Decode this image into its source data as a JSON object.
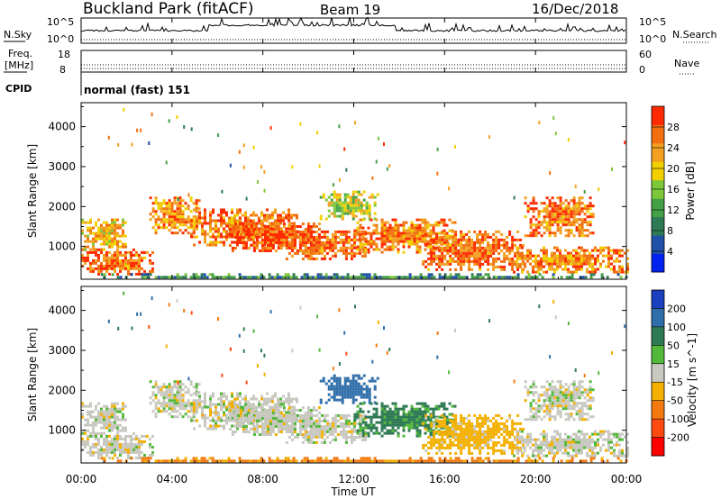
{
  "header": {
    "site": "Buckland Park (fitACF)",
    "beam": "Beam 19",
    "date": "16/Dec/2018"
  },
  "noise_panel": {
    "left_label": "N.Sky",
    "right_label": "N.Search",
    "left_ticks": [
      "10^5",
      "10^0"
    ],
    "right_ticks": [
      "10^5",
      "10^0"
    ]
  },
  "freq_panel": {
    "left_label": "Freq.",
    "left_unit": "[MHz]",
    "right_label": "Nave",
    "left_ticks": [
      "18",
      "8"
    ],
    "right_ticks": [
      "60",
      "0"
    ]
  },
  "cpid": {
    "label": "CPID",
    "value": "normal (fast) 151"
  },
  "time_axis": {
    "title": "Time UT",
    "ticks": [
      "00:00",
      "04:00",
      "08:00",
      "12:00",
      "16:00",
      "20:00",
      "00:00"
    ]
  },
  "chart_data": [
    {
      "type": "heatmap",
      "title": "",
      "quantity": "Power",
      "ylabel": "Slant Range [km]",
      "xlabel": "",
      "x_range_hours": [
        0,
        24
      ],
      "ylim": [
        180,
        4600
      ],
      "yticks": [
        1000,
        2000,
        3000,
        4000
      ],
      "colorbar": {
        "label": "Power [dB]",
        "ticks": [
          4,
          8,
          12,
          16,
          20,
          24,
          28
        ],
        "range": [
          0,
          32
        ],
        "colors": [
          "#0022ee",
          "#2050a8",
          "#2e7a55",
          "#44a044",
          "#7cc83a",
          "#f2d000",
          "#f3a020",
          "#f27010",
          "#ff2a00"
        ]
      },
      "echo_regions": [
        {
          "t": [
            0.0,
            3.2
          ],
          "r": [
            300,
            950
          ],
          "level": 27
        },
        {
          "t": [
            0.0,
            2.0
          ],
          "r": [
            950,
            1700
          ],
          "level": 22
        },
        {
          "t": [
            3.0,
            5.2
          ],
          "r": [
            1350,
            2250
          ],
          "level": 24
        },
        {
          "t": [
            4.8,
            9.5
          ],
          "r": [
            1050,
            1950
          ],
          "level": 26
        },
        {
          "t": [
            6.5,
            10.5
          ],
          "r": [
            900,
            1600
          ],
          "level": 28
        },
        {
          "t": [
            9.0,
            12.5
          ],
          "r": [
            700,
            1400
          ],
          "level": 27
        },
        {
          "t": [
            10.5,
            13.0
          ],
          "r": [
            1700,
            2400
          ],
          "level": 18
        },
        {
          "t": [
            12.0,
            16.5
          ],
          "r": [
            850,
            1700
          ],
          "level": 25
        },
        {
          "t": [
            15.0,
            19.5
          ],
          "r": [
            400,
            1400
          ],
          "level": 27
        },
        {
          "t": [
            19.5,
            22.5
          ],
          "r": [
            1300,
            2250
          ],
          "level": 26
        },
        {
          "t": [
            19.0,
            24.0
          ],
          "r": [
            350,
            1000
          ],
          "level": 25
        },
        {
          "t": [
            0.5,
            24.0
          ],
          "r": [
            200,
            330
          ],
          "level": 10
        }
      ]
    },
    {
      "type": "heatmap",
      "title": "",
      "quantity": "Velocity",
      "ylabel": "Slant Range [km]",
      "xlabel": "Time UT",
      "x_range_hours": [
        0,
        24
      ],
      "ylim": [
        180,
        4600
      ],
      "yticks": [
        1000,
        2000,
        3000,
        4000
      ],
      "colorbar": {
        "label": "Velocity [m s^-1]",
        "ticks": [
          200,
          100,
          50,
          15,
          -15,
          -50,
          -100,
          -200
        ],
        "colors": [
          "#1a3fbf",
          "#2f6eaa",
          "#2e7a55",
          "#52b83a",
          "#c8c8c0",
          "#f4b000",
          "#f47a10",
          "#ff4a10",
          "#ff0000"
        ]
      },
      "echo_regions": [
        {
          "t": [
            0.0,
            3.2
          ],
          "r": [
            300,
            950
          ],
          "level": 0
        },
        {
          "t": [
            0.0,
            2.0
          ],
          "r": [
            950,
            1700
          ],
          "level": 0
        },
        {
          "t": [
            3.0,
            5.2
          ],
          "r": [
            1350,
            2250
          ],
          "level": 0
        },
        {
          "t": [
            4.8,
            9.5
          ],
          "r": [
            1050,
            1950
          ],
          "level": 0
        },
        {
          "t": [
            6.5,
            10.5
          ],
          "r": [
            900,
            1600
          ],
          "level": 0
        },
        {
          "t": [
            9.0,
            12.5
          ],
          "r": [
            700,
            1400
          ],
          "level": 0
        },
        {
          "t": [
            10.5,
            13.0
          ],
          "r": [
            1700,
            2400
          ],
          "level": 120
        },
        {
          "t": [
            12.0,
            16.5
          ],
          "r": [
            850,
            1700
          ],
          "level": 60
        },
        {
          "t": [
            15.0,
            19.5
          ],
          "r": [
            400,
            1400
          ],
          "level": -30
        },
        {
          "t": [
            19.5,
            22.5
          ],
          "r": [
            1300,
            2250
          ],
          "level": 0
        },
        {
          "t": [
            19.0,
            24.0
          ],
          "r": [
            350,
            1000
          ],
          "level": 0
        },
        {
          "t": [
            0.5,
            24.0
          ],
          "r": [
            200,
            330
          ],
          "level": -60
        }
      ]
    }
  ]
}
